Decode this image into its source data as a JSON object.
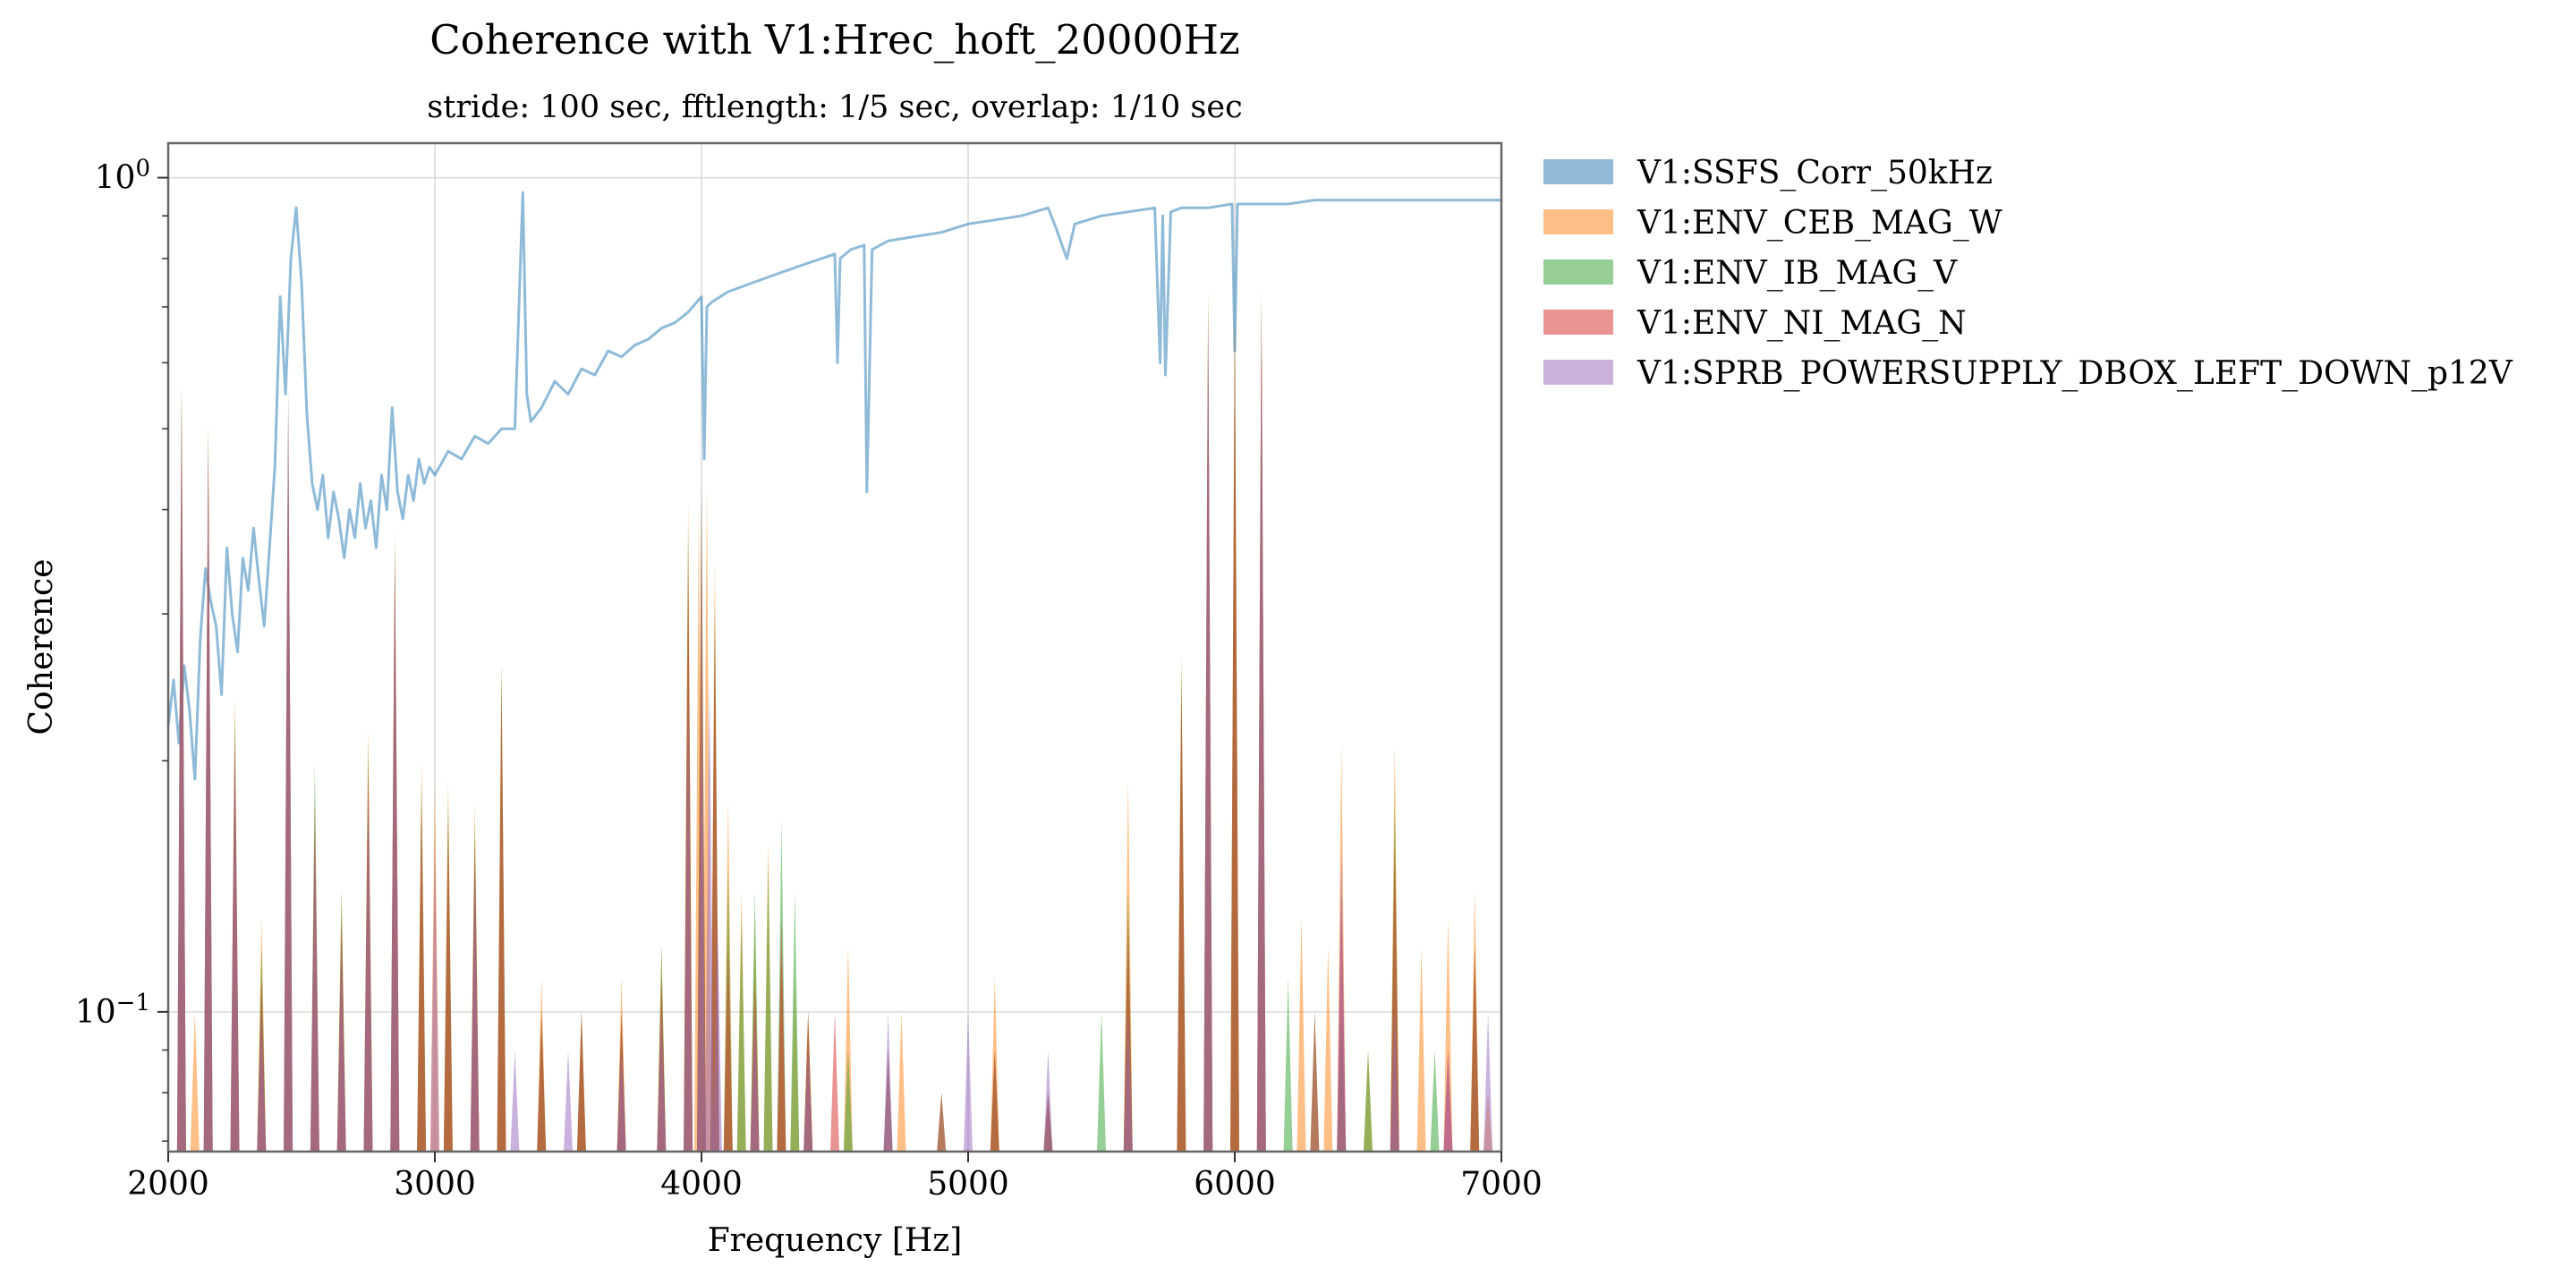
{
  "chart_data": {
    "type": "area",
    "title": "Coherence with V1:Hrec_hoft_20000Hz",
    "subtitle": "stride: 100 sec, fftlength: 1/5 sec, overlap: 1/10 sec",
    "xlabel": "Frequency [Hz]",
    "ylabel": "Coherence",
    "xlim": [
      2000,
      7000
    ],
    "ylim": [
      0.068,
      1.1
    ],
    "yscale": "log",
    "grid": true,
    "legend_placement": "outside upper right",
    "x_ticks": [
      "2000",
      "3000",
      "4000",
      "5000",
      "6000",
      "7000"
    ],
    "x_tick_values": [
      2000,
      3000,
      4000,
      5000,
      6000,
      7000
    ],
    "y_ticks": [
      {
        "base": "10",
        "exp": "0",
        "value": 1.0
      },
      {
        "base": "10",
        "exp": "−1",
        "value": 0.1
      }
    ],
    "series": [
      {
        "name": "V1:SSFS_Corr_50kHz",
        "color": "#1f77b4",
        "style": "line",
        "x": [
          2000,
          2020,
          2040,
          2060,
          2080,
          2100,
          2120,
          2140,
          2160,
          2180,
          2200,
          2220,
          2240,
          2260,
          2280,
          2300,
          2320,
          2340,
          2360,
          2380,
          2400,
          2420,
          2440,
          2460,
          2480,
          2500,
          2520,
          2540,
          2560,
          2580,
          2600,
          2620,
          2640,
          2660,
          2680,
          2700,
          2720,
          2740,
          2760,
          2780,
          2800,
          2820,
          2840,
          2860,
          2880,
          2900,
          2920,
          2940,
          2960,
          2980,
          3000,
          3050,
          3100,
          3150,
          3200,
          3250,
          3300,
          3330,
          3345,
          3360,
          3400,
          3450,
          3500,
          3550,
          3600,
          3650,
          3700,
          3750,
          3800,
          3850,
          3900,
          3950,
          4000,
          4010,
          4020,
          4040,
          4100,
          4200,
          4300,
          4400,
          4500,
          4510,
          4520,
          4560,
          4610,
          4620,
          4640,
          4700,
          4800,
          4900,
          5000,
          5100,
          5200,
          5300,
          5330,
          5370,
          5400,
          5500,
          5600,
          5700,
          5720,
          5730,
          5740,
          5760,
          5800,
          5900,
          5990,
          6000,
          6010,
          6100,
          6200,
          6300,
          6400,
          6500,
          6600,
          6700,
          6800,
          6900,
          7000
        ],
        "values": [
          0.22,
          0.25,
          0.21,
          0.26,
          0.23,
          0.19,
          0.28,
          0.34,
          0.31,
          0.29,
          0.24,
          0.36,
          0.3,
          0.27,
          0.35,
          0.32,
          0.38,
          0.33,
          0.29,
          0.36,
          0.45,
          0.72,
          0.55,
          0.8,
          0.92,
          0.75,
          0.52,
          0.43,
          0.4,
          0.44,
          0.37,
          0.42,
          0.39,
          0.35,
          0.4,
          0.37,
          0.43,
          0.38,
          0.41,
          0.36,
          0.44,
          0.4,
          0.53,
          0.42,
          0.39,
          0.44,
          0.41,
          0.46,
          0.43,
          0.45,
          0.44,
          0.47,
          0.46,
          0.49,
          0.48,
          0.5,
          0.5,
          0.96,
          0.55,
          0.51,
          0.53,
          0.57,
          0.55,
          0.59,
          0.58,
          0.62,
          0.61,
          0.63,
          0.64,
          0.66,
          0.67,
          0.69,
          0.72,
          0.46,
          0.7,
          0.71,
          0.73,
          0.75,
          0.77,
          0.79,
          0.81,
          0.6,
          0.8,
          0.82,
          0.83,
          0.42,
          0.82,
          0.84,
          0.85,
          0.86,
          0.88,
          0.89,
          0.9,
          0.92,
          0.87,
          0.8,
          0.88,
          0.9,
          0.91,
          0.92,
          0.6,
          0.9,
          0.58,
          0.91,
          0.92,
          0.92,
          0.93,
          0.62,
          0.93,
          0.93,
          0.93,
          0.94,
          0.94,
          0.94,
          0.94,
          0.94,
          0.94,
          0.94,
          0.94
        ]
      },
      {
        "name": "V1:ENV_CEB_MAG_W",
        "color": "#ff7f0e",
        "style": "fill",
        "x": [
          2050,
          2100,
          2150,
          2250,
          2350,
          2450,
          2550,
          2650,
          2750,
          2850,
          2950,
          3000,
          3050,
          3150,
          3250,
          3400,
          3550,
          3700,
          3850,
          3950,
          3990,
          4020,
          4050,
          4100,
          4150,
          4200,
          4250,
          4300,
          4350,
          4400,
          4550,
          4750,
          5100,
          5300,
          5600,
          5800,
          5900,
          6000,
          6100,
          6250,
          6350,
          6400,
          6500,
          6600,
          6700,
          6800,
          6900,
          6950
        ],
        "values": [
          0.55,
          0.1,
          0.51,
          0.24,
          0.13,
          0.55,
          0.16,
          0.14,
          0.22,
          0.38,
          0.2,
          0.19,
          0.19,
          0.18,
          0.26,
          0.11,
          0.1,
          0.11,
          0.12,
          0.41,
          0.4,
          0.43,
          0.35,
          0.18,
          0.14,
          0.13,
          0.16,
          0.12,
          0.11,
          0.1,
          0.12,
          0.1,
          0.11,
          0.08,
          0.19,
          0.27,
          0.74,
          0.7,
          0.74,
          0.13,
          0.12,
          0.21,
          0.09,
          0.21,
          0.12,
          0.13,
          0.14,
          0.08
        ]
      },
      {
        "name": "V1:ENV_IB_MAG_V",
        "color": "#2ca02c",
        "style": "fill",
        "x": [
          2050,
          2150,
          2250,
          2350,
          2450,
          2550,
          2650,
          2750,
          2850,
          2950,
          3050,
          3150,
          3250,
          3400,
          3550,
          3700,
          3850,
          3950,
          4000,
          4050,
          4100,
          4150,
          4200,
          4250,
          4300,
          4350,
          4400,
          4550,
          4700,
          4900,
          5100,
          5300,
          5500,
          5600,
          5800,
          5900,
          6000,
          6100,
          6200,
          6300,
          6400,
          6500,
          6600,
          6750,
          6900
        ],
        "values": [
          0.57,
          0.5,
          0.23,
          0.12,
          0.54,
          0.2,
          0.14,
          0.21,
          0.37,
          0.19,
          0.18,
          0.17,
          0.26,
          0.1,
          0.1,
          0.1,
          0.12,
          0.38,
          0.43,
          0.31,
          0.15,
          0.13,
          0.14,
          0.15,
          0.17,
          0.14,
          0.1,
          0.09,
          0.09,
          0.08,
          0.09,
          0.08,
          0.1,
          0.14,
          0.26,
          0.72,
          0.68,
          0.72,
          0.11,
          0.1,
          0.1,
          0.09,
          0.18,
          0.09,
          0.12
        ]
      },
      {
        "name": "V1:ENV_NI_MAG_N",
        "color": "#d62728",
        "style": "fill",
        "x": [
          2050,
          2150,
          2250,
          2350,
          2450,
          2550,
          2650,
          2750,
          2850,
          2950,
          3050,
          3150,
          3250,
          3400,
          3550,
          3700,
          3850,
          3950,
          4000,
          4050,
          4100,
          4200,
          4300,
          4400,
          4500,
          4700,
          4900,
          5100,
          5300,
          5600,
          5800,
          5900,
          6000,
          6100,
          6300,
          6400,
          6600,
          6800,
          6900
        ],
        "values": [
          0.55,
          0.49,
          0.22,
          0.11,
          0.52,
          0.18,
          0.13,
          0.2,
          0.36,
          0.18,
          0.17,
          0.16,
          0.25,
          0.1,
          0.1,
          0.1,
          0.11,
          0.36,
          0.42,
          0.3,
          0.12,
          0.11,
          0.13,
          0.1,
          0.1,
          0.09,
          0.08,
          0.09,
          0.08,
          0.13,
          0.25,
          0.7,
          0.67,
          0.71,
          0.1,
          0.14,
          0.16,
          0.09,
          0.12
        ]
      },
      {
        "name": "V1:SPRB_POWERSUPPLY_DBOX_LEFT_DOWN_p12V",
        "color": "#9467bd",
        "style": "fill",
        "x": [
          2050,
          2150,
          2250,
          2350,
          2450,
          2550,
          2650,
          2750,
          2850,
          3000,
          3150,
          3300,
          3500,
          3700,
          3850,
          3950,
          4000,
          4030,
          4060,
          4200,
          4400,
          4700,
          5000,
          5300,
          5600,
          5900,
          6100,
          6400,
          6600,
          6800,
          6950
        ],
        "values": [
          0.52,
          0.47,
          0.21,
          0.1,
          0.56,
          0.16,
          0.12,
          0.18,
          0.34,
          0.16,
          0.15,
          0.09,
          0.09,
          0.09,
          0.1,
          0.24,
          0.22,
          0.25,
          0.13,
          0.1,
          0.09,
          0.1,
          0.1,
          0.09,
          0.1,
          0.68,
          0.69,
          0.16,
          0.1,
          0.09,
          0.1
        ]
      }
    ]
  }
}
